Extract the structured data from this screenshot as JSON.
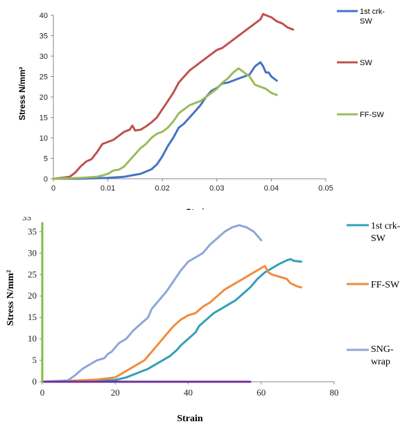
{
  "chart_data": [
    {
      "type": "line",
      "title": "",
      "xlabel": "Strain",
      "ylabel": "Stress N/mm²",
      "xlim": [
        0,
        0.05
      ],
      "ylim": [
        0,
        40
      ],
      "x_ticks": [
        "0",
        "0.01",
        "0.02",
        "0.03",
        "0.04",
        "0.05"
      ],
      "y_ticks": [
        "0",
        "5",
        "10",
        "15",
        "20",
        "25",
        "30",
        "35",
        "40"
      ],
      "grid": false,
      "legend_position": "right",
      "series": [
        {
          "name": "1st crk-SW",
          "color": "#4472c4",
          "points": [
            [
              0,
              0
            ],
            [
              0.005,
              0
            ],
            [
              0.01,
              0.2
            ],
            [
              0.013,
              0.5
            ],
            [
              0.016,
              1.2
            ],
            [
              0.018,
              2.3
            ],
            [
              0.019,
              3.5
            ],
            [
              0.02,
              5.5
            ],
            [
              0.021,
              8
            ],
            [
              0.022,
              10
            ],
            [
              0.023,
              12.5
            ],
            [
              0.024,
              13.5
            ],
            [
              0.025,
              15
            ],
            [
              0.026,
              16.5
            ],
            [
              0.027,
              18
            ],
            [
              0.028,
              20
            ],
            [
              0.029,
              21.5
            ],
            [
              0.03,
              22.2
            ],
            [
              0.031,
              23.3
            ],
            [
              0.032,
              23.5
            ],
            [
              0.033,
              24
            ],
            [
              0.034,
              24.5
            ],
            [
              0.035,
              25
            ],
            [
              0.036,
              25.5
            ],
            [
              0.037,
              27.5
            ],
            [
              0.038,
              28.5
            ],
            [
              0.0385,
              27.5
            ],
            [
              0.039,
              26
            ],
            [
              0.0395,
              26
            ],
            [
              0.04,
              25
            ],
            [
              0.041,
              24
            ]
          ]
        },
        {
          "name": "SW",
          "color": "#c0504d",
          "points": [
            [
              0,
              0
            ],
            [
              0.002,
              0.3
            ],
            [
              0.003,
              0.5
            ],
            [
              0.004,
              1.5
            ],
            [
              0.005,
              3
            ],
            [
              0.006,
              4.2
            ],
            [
              0.007,
              4.8
            ],
            [
              0.008,
              6.5
            ],
            [
              0.009,
              8.5
            ],
            [
              0.01,
              9
            ],
            [
              0.011,
              9.5
            ],
            [
              0.012,
              10.5
            ],
            [
              0.013,
              11.5
            ],
            [
              0.014,
              12
            ],
            [
              0.0145,
              13
            ],
            [
              0.015,
              11.8
            ],
            [
              0.016,
              12
            ],
            [
              0.017,
              12.8
            ],
            [
              0.018,
              13.8
            ],
            [
              0.019,
              15
            ],
            [
              0.02,
              17
            ],
            [
              0.021,
              19
            ],
            [
              0.022,
              21
            ],
            [
              0.023,
              23.5
            ],
            [
              0.024,
              25
            ],
            [
              0.025,
              26.5
            ],
            [
              0.026,
              27.5
            ],
            [
              0.027,
              28.5
            ],
            [
              0.028,
              29.5
            ],
            [
              0.029,
              30.5
            ],
            [
              0.03,
              31.5
            ],
            [
              0.031,
              32
            ],
            [
              0.032,
              33
            ],
            [
              0.033,
              34
            ],
            [
              0.034,
              35
            ],
            [
              0.035,
              36
            ],
            [
              0.036,
              37
            ],
            [
              0.037,
              38
            ],
            [
              0.038,
              39
            ],
            [
              0.0385,
              40.3
            ],
            [
              0.039,
              40
            ],
            [
              0.04,
              39.5
            ],
            [
              0.041,
              38.5
            ],
            [
              0.042,
              38
            ],
            [
              0.043,
              37
            ],
            [
              0.044,
              36.5
            ]
          ]
        },
        {
          "name": "FF-SW",
          "color": "#9bbb59",
          "points": [
            [
              0,
              0
            ],
            [
              0.005,
              0.2
            ],
            [
              0.008,
              0.5
            ],
            [
              0.009,
              0.8
            ],
            [
              0.01,
              1.2
            ],
            [
              0.011,
              2
            ],
            [
              0.012,
              2.2
            ],
            [
              0.013,
              3
            ],
            [
              0.014,
              4.5
            ],
            [
              0.015,
              6
            ],
            [
              0.016,
              7.5
            ],
            [
              0.017,
              8.5
            ],
            [
              0.018,
              10
            ],
            [
              0.019,
              11
            ],
            [
              0.02,
              11.5
            ],
            [
              0.021,
              12.5
            ],
            [
              0.022,
              14
            ],
            [
              0.023,
              16
            ],
            [
              0.024,
              17
            ],
            [
              0.025,
              18
            ],
            [
              0.026,
              18.5
            ],
            [
              0.027,
              19
            ],
            [
              0.028,
              20
            ],
            [
              0.029,
              21
            ],
            [
              0.03,
              22
            ],
            [
              0.031,
              23.5
            ],
            [
              0.032,
              24.5
            ],
            [
              0.033,
              26
            ],
            [
              0.034,
              27
            ],
            [
              0.035,
              26
            ],
            [
              0.036,
              25
            ],
            [
              0.037,
              23
            ],
            [
              0.038,
              22.5
            ],
            [
              0.039,
              22
            ],
            [
              0.04,
              21
            ],
            [
              0.041,
              20.5
            ]
          ]
        }
      ]
    },
    {
      "type": "line",
      "title": "",
      "xlabel": "Strain",
      "ylabel": "Stress N/mm²",
      "xlim": [
        0,
        80
      ],
      "ylim": [
        0,
        37
      ],
      "x_ticks": [
        "0",
        "20",
        "40",
        "60",
        "80"
      ],
      "y_ticks": [
        "0",
        "5",
        "10",
        "15",
        "20",
        "25",
        "30",
        "35"
      ],
      "grid": false,
      "legend_position": "right",
      "series": [
        {
          "name": "1st crk-SW",
          "color": "#31a0b5",
          "points": [
            [
              0,
              0
            ],
            [
              10,
              0
            ],
            [
              15,
              0.2
            ],
            [
              20,
              0.4
            ],
            [
              23,
              1
            ],
            [
              26,
              2
            ],
            [
              29,
              3
            ],
            [
              31,
              4
            ],
            [
              33,
              5
            ],
            [
              35,
              6
            ],
            [
              37,
              7.5
            ],
            [
              38,
              8.5
            ],
            [
              40,
              10
            ],
            [
              42,
              11.5
            ],
            [
              43,
              13
            ],
            [
              45,
              14.5
            ],
            [
              47,
              16
            ],
            [
              49,
              17
            ],
            [
              51,
              18
            ],
            [
              53,
              19
            ],
            [
              55,
              20.5
            ],
            [
              57,
              22
            ],
            [
              59,
              24
            ],
            [
              61,
              25.5
            ],
            [
              63,
              26.5
            ],
            [
              65,
              27.5
            ],
            [
              67,
              28.3
            ],
            [
              68,
              28.6
            ],
            [
              69,
              28.2
            ],
            [
              71,
              28
            ]
          ]
        },
        {
          "name": "FF-SW",
          "color": "#f28b3c",
          "points": [
            [
              0,
              0
            ],
            [
              10,
              0.3
            ],
            [
              15,
              0.5
            ],
            [
              18,
              0.8
            ],
            [
              20,
              1
            ],
            [
              22,
              2
            ],
            [
              24,
              3
            ],
            [
              26,
              4
            ],
            [
              28,
              5
            ],
            [
              30,
              7
            ],
            [
              32,
              9
            ],
            [
              34,
              11
            ],
            [
              36,
              13
            ],
            [
              38,
              14.5
            ],
            [
              40,
              15.5
            ],
            [
              42,
              16
            ],
            [
              44,
              17.5
            ],
            [
              46,
              18.5
            ],
            [
              48,
              20
            ],
            [
              50,
              21.5
            ],
            [
              52,
              22.5
            ],
            [
              54,
              23.5
            ],
            [
              56,
              24.5
            ],
            [
              58,
              25.5
            ],
            [
              60,
              26.5
            ],
            [
              61,
              27
            ],
            [
              62,
              25.5
            ],
            [
              63,
              25
            ],
            [
              65,
              24.5
            ],
            [
              67,
              24
            ],
            [
              68,
              23
            ],
            [
              70,
              22.2
            ],
            [
              71,
              22
            ]
          ]
        },
        {
          "name": "SNG-wrap",
          "color": "#8ea5d8",
          "points": [
            [
              0,
              0
            ],
            [
              7,
              0.3
            ],
            [
              9,
              1.5
            ],
            [
              11,
              3
            ],
            [
              13,
              4
            ],
            [
              15,
              5
            ],
            [
              17,
              5.5
            ],
            [
              18,
              6.5
            ],
            [
              19,
              7
            ],
            [
              20,
              8
            ],
            [
              21,
              9
            ],
            [
              23,
              10
            ],
            [
              25,
              12
            ],
            [
              27,
              13.5
            ],
            [
              29,
              15
            ],
            [
              30,
              17
            ],
            [
              32,
              19
            ],
            [
              34,
              21
            ],
            [
              36,
              23.5
            ],
            [
              38,
              26
            ],
            [
              40,
              28
            ],
            [
              42,
              29
            ],
            [
              44,
              30
            ],
            [
              46,
              32
            ],
            [
              48,
              33.5
            ],
            [
              50,
              35
            ],
            [
              52,
              36
            ],
            [
              54,
              36.5
            ],
            [
              56,
              36
            ],
            [
              58,
              35
            ],
            [
              60,
              33
            ]
          ]
        },
        {
          "name": "",
          "color": "#7030a0",
          "points": [
            [
              0,
              0
            ],
            [
              57,
              0
            ]
          ]
        },
        {
          "name": "",
          "color": "#7bc043",
          "points": [
            [
              0,
              37
            ],
            [
              0,
              0
            ]
          ]
        }
      ]
    }
  ]
}
